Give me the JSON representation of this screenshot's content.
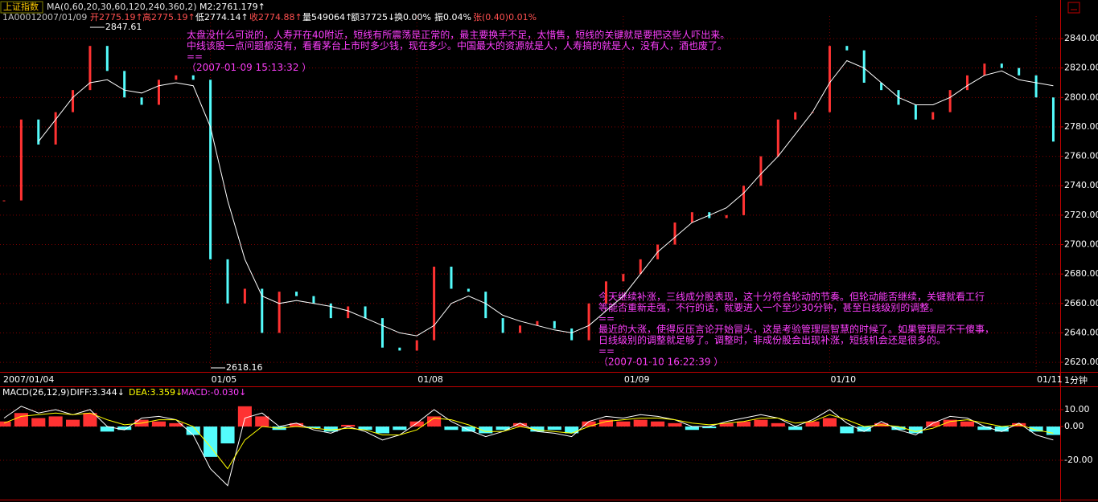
{
  "header": {
    "line1": [
      "M2:2761.179↑"
    ],
    "line2": [
      "1A0001",
      "2007/01/09",
      "开2775.19↑",
      "高2775.19↑",
      "低2774.14↑",
      "收2774.88↑",
      "量549064↑",
      "额37725↓",
      "换0.00%",
      "振0.04%",
      "张(0.40)0.01%"
    ],
    "macd": [
      "DIFF:3.344↓",
      "DEA:3.359↓",
      "MACD:-0.030↓"
    ]
  },
  "period": "1分钟",
  "annotations": {
    "high": "2847.61",
    "low": "2618.16",
    "note1": [
      "太盘没什么可说的，人寿开在40附近，短线有所震荡是正常的，最主要换手不足，太惜售，短线的关键就是要把这些人吓出来。",
      "中线该股一点问题都没有，看看茅台上市时多少钱，现在多少。中国最大的资源就是人，人寿搞的就是人，没有人，酒也废了。",
      "==",
      "（2007-01-09 15:13:32 ）"
    ],
    "note2": [
      "今天继续补涨，三线成分股表现，这十分符合轮动的节奏。但轮动能否继续，关键就看工行",
      "等能否重新走强，不行的话，就要进入一个至少30分钟，甚至日线级别的调整。",
      "==",
      "最近的大涨，使得反压言论开始冒头，这是考验管理层智慧的时候了。如果管理层不干傻事，",
      "日线级别的调整就足够了。调整时，非成份股会出现补涨，短线机会还是很多的。",
      "==",
      "（2007-01-10 16:22:39 ）"
    ]
  },
  "chart_data": [
    {
      "type": "kline",
      "series": [
        {
          "name": "上证指数",
          "color_up": "#ff3232",
          "color_down": "#54fcfc",
          "values": [
            2730,
            2785,
            2768,
            2790,
            2805,
            2835,
            2818,
            2800,
            2795,
            2812,
            2815,
            2812,
            2690,
            2660,
            2670,
            2640,
            2668,
            2665,
            2660,
            2650,
            2658,
            2650,
            2630,
            2628,
            2635,
            2685,
            2670,
            2668,
            2650,
            2640,
            2645,
            2648,
            2643,
            2635,
            2660,
            2675,
            2680,
            2690,
            2700,
            2715,
            2722,
            2718,
            2720,
            2740,
            2760,
            2785,
            2790,
            2790,
            2835,
            2832,
            2810,
            2805,
            2795,
            2785,
            2790,
            2805,
            2815,
            2823,
            2820,
            2815,
            2800,
            2770
          ]
        },
        {
          "name": "MA(0,60,20,30,60,120,240,360,2)",
          "color": "#ffffff",
          "values": [
            null,
            null,
            2770,
            2785,
            2800,
            2810,
            2812,
            2805,
            2803,
            2808,
            2810,
            2808,
            2780,
            2730,
            2690,
            2665,
            2660,
            2662,
            2660,
            2658,
            2655,
            2650,
            2645,
            2640,
            2638,
            2645,
            2660,
            2665,
            2660,
            2652,
            2648,
            2645,
            2642,
            2640,
            2645,
            2655,
            2665,
            2680,
            2695,
            2705,
            2715,
            2720,
            2725,
            2735,
            2748,
            2760,
            2775,
            2790,
            2810,
            2825,
            2820,
            2810,
            2800,
            2795,
            2795,
            2800,
            2808,
            2815,
            2818,
            2812,
            2810,
            2808
          ]
        }
      ],
      "xlim": [
        0,
        61.4
      ],
      "xticks": [
        {
          "value": 0,
          "label": "2007/01/04"
        },
        {
          "value": 12,
          "label": "01/05"
        },
        {
          "value": 24,
          "label": "01/08"
        },
        {
          "value": 36,
          "label": "01/09"
        },
        {
          "value": 48,
          "label": "01/10"
        },
        {
          "value": 60,
          "label": "01/11"
        }
      ],
      "ylim": [
        2613.5,
        2855.3
      ],
      "yticks": [
        {
          "value": 2620,
          "label": "2620.00"
        },
        {
          "value": 2640,
          "label": "2640.00"
        },
        {
          "value": 2660,
          "label": "2660.00"
        },
        {
          "value": 2680,
          "label": "2680.00"
        },
        {
          "value": 2700,
          "label": "2700.00"
        },
        {
          "value": 2720,
          "label": "2720.00"
        },
        {
          "value": 2740,
          "label": "2740.00"
        },
        {
          "value": 2760,
          "label": "2760.00"
        },
        {
          "value": 2780,
          "label": "2780.00"
        },
        {
          "value": 2800,
          "label": "2800.00"
        },
        {
          "value": 2820,
          "label": "2820.00"
        },
        {
          "value": 2840,
          "label": "2840.00"
        }
      ],
      "grid": true
    },
    {
      "type": "macd",
      "title": "MACD(26,12,9)",
      "series": [
        {
          "color_up": "#ff3232",
          "color_down": "#54fcfc",
          "values": [
            3,
            8,
            5,
            6,
            4,
            8,
            -3,
            -2,
            4,
            3,
            2,
            -5,
            -18,
            -10,
            12,
            6,
            -2,
            2,
            -1,
            -3,
            1,
            -2,
            -4,
            -2,
            3,
            6,
            -2,
            -3,
            -4,
            -2,
            2,
            -3,
            -2,
            -4,
            3,
            4,
            3,
            4,
            3,
            2,
            -2,
            -1,
            2,
            3,
            4,
            2,
            -2,
            3,
            5,
            -4,
            -3,
            2,
            -2,
            -4,
            3,
            4,
            3,
            -2,
            -3,
            2,
            -3,
            -5
          ]
        },
        {
          "color": "#ffffff",
          "values": [
            5,
            12,
            8,
            10,
            7,
            10,
            0,
            -2,
            5,
            6,
            4,
            -5,
            -25,
            -35,
            5,
            8,
            0,
            2,
            -2,
            -4,
            0,
            -3,
            -8,
            -5,
            2,
            10,
            3,
            -2,
            -6,
            -3,
            2,
            -3,
            -4,
            -6,
            3,
            6,
            5,
            7,
            6,
            4,
            0,
            0,
            3,
            5,
            7,
            5,
            0,
            4,
            10,
            2,
            -3,
            3,
            -2,
            -5,
            2,
            6,
            5,
            0,
            -3,
            2,
            -5,
            -8
          ]
        },
        {
          "color": "#ffff00",
          "values": [
            2,
            6,
            7,
            8,
            7,
            8,
            4,
            1,
            2,
            4,
            4,
            0,
            -12,
            -25,
            -8,
            0,
            -1,
            0,
            -1,
            -2,
            -1,
            -2,
            -5,
            -5,
            -2,
            5,
            4,
            1,
            -3,
            -3,
            0,
            -2,
            -3,
            -4,
            0,
            3,
            4,
            5,
            5,
            4,
            2,
            1,
            2,
            3,
            5,
            5,
            2,
            3,
            7,
            4,
            0,
            1,
            0,
            -3,
            -1,
            3,
            4,
            2,
            0,
            1,
            -2,
            -4
          ]
        }
      ],
      "xlim": [
        0,
        61.4
      ],
      "ylim": [
        -43.3,
        22.86
      ],
      "yticks": [
        {
          "value": -20,
          "label": "-20.00"
        },
        {
          "value": 0,
          "label": "0.00"
        },
        {
          "value": 10,
          "label": "10.00"
        }
      ],
      "grid": true
    }
  ]
}
